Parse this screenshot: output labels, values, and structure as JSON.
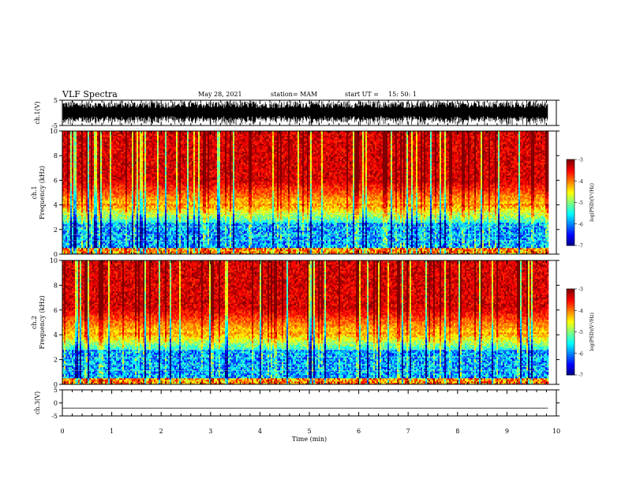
{
  "header": {
    "title": "VLF Spectra",
    "date": "May 28, 2021",
    "station": "station= MAM",
    "start_label": "start  UT =",
    "start_time": "15: 50: 1"
  },
  "chart_data": [
    {
      "type": "line",
      "ylabel": "ch.1(V)",
      "ylim": [
        -5,
        5
      ],
      "yticks": [
        "5",
        "-5"
      ],
      "note": "dense oscillating time-series signal"
    },
    {
      "type": "heatmap",
      "ylabel_line1": "ch.1",
      "ylabel_line2": "Frequency (kHz)",
      "ylim": [
        0,
        10
      ],
      "yticks": [
        "0",
        "2",
        "4",
        "6",
        "8",
        "10"
      ],
      "colorbar": {
        "label": "log(PSD)(V²/Hz)",
        "range": [
          -7,
          -3
        ],
        "ticks": [
          "-3",
          "-4",
          "-5",
          "-6",
          "-7"
        ]
      }
    },
    {
      "type": "heatmap",
      "ylabel_line1": "ch.2",
      "ylabel_line2": "Frequency (kHz)",
      "ylim": [
        0,
        10
      ],
      "yticks": [
        "0",
        "2",
        "4",
        "6",
        "8",
        "10"
      ],
      "colorbar": {
        "label": "log(PSD)(V²/Hz)",
        "range": [
          -7,
          -3
        ],
        "ticks": [
          "-3",
          "-4",
          "-5",
          "-6",
          "-7"
        ]
      }
    },
    {
      "type": "line",
      "ylabel": "ch.3(V)",
      "ylim": [
        -5,
        5
      ],
      "yticks": [
        "5",
        "0",
        "-5"
      ],
      "note": "flat signal slightly below zero",
      "y": -2
    }
  ],
  "xaxis": {
    "label": "Time (min)",
    "xlim": [
      0,
      10
    ],
    "ticks": [
      "0",
      "1",
      "2",
      "3",
      "4",
      "5",
      "6",
      "7",
      "8",
      "9",
      "10"
    ],
    "data_end": 9.83
  },
  "colors": {
    "axis": "#000000"
  }
}
